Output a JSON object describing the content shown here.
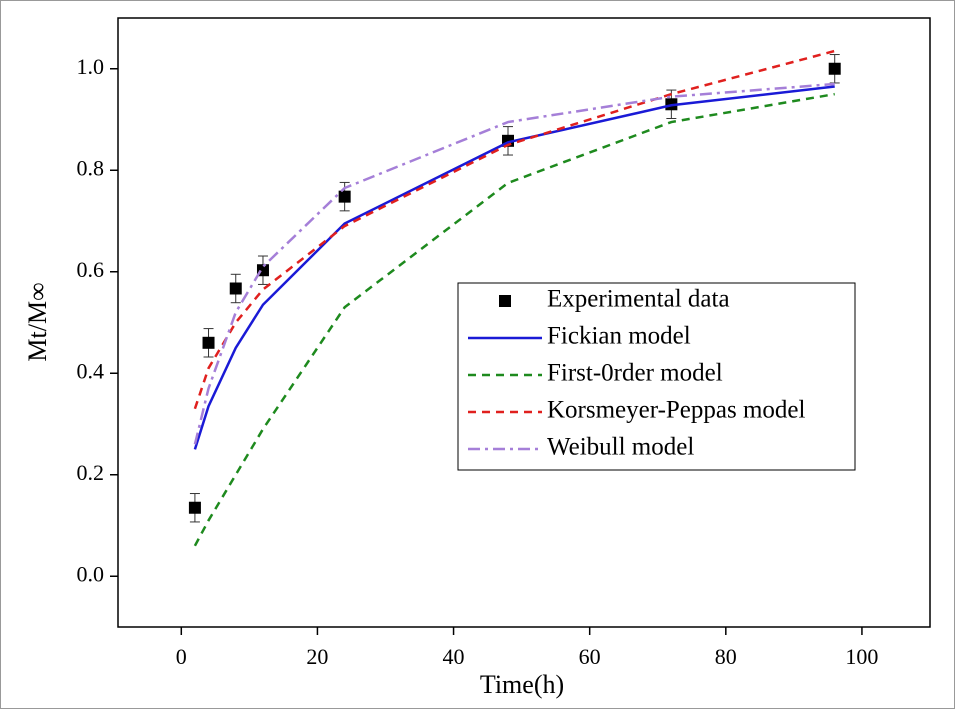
{
  "chart_data": {
    "type": "line",
    "x_label": "Time(h)",
    "y_label": "Mt/M∞",
    "x": [
      2,
      4,
      8,
      12,
      24,
      48,
      72,
      96
    ],
    "xlim": [
      -9.3,
      110
    ],
    "xticks": [
      0,
      20,
      40,
      60,
      80,
      100
    ],
    "ylim": [
      -0.1,
      1.1
    ],
    "yticks": [
      {
        "value": 0,
        "label": "0.0"
      },
      0.2,
      0.4,
      0.6,
      0.8,
      {
        "value": 1,
        "label": "1.0"
      }
    ],
    "series": [
      {
        "name": "Experimental data",
        "color": "#000000",
        "style": "markers",
        "values": [
          0.135,
          0.46,
          0.567,
          0.603,
          0.748,
          0.858,
          0.93,
          1.0
        ],
        "errors": [
          0.028,
          0.028,
          0.028,
          0.028,
          0.028,
          0.028,
          0.028,
          0.028
        ]
      },
      {
        "name": "Fickian model",
        "color": "#1a1ad6",
        "style": "solid",
        "values": [
          0.25,
          0.335,
          0.45,
          0.535,
          0.695,
          0.855,
          0.928,
          0.965
        ]
      },
      {
        "name": "First-0rder model",
        "color": "#1e8a1e",
        "style": "dashed",
        "values": [
          0.06,
          0.11,
          0.2,
          0.29,
          0.53,
          0.775,
          0.895,
          0.95
        ]
      },
      {
        "name": "Korsmeyer-Peppas model",
        "color": "#e0201e",
        "style": "dashed",
        "values": [
          0.33,
          0.41,
          0.5,
          0.565,
          0.69,
          0.85,
          0.95,
          1.035
        ]
      },
      {
        "name": "Weibull model",
        "color": "#a57fd8",
        "style": "dashdot",
        "values": [
          0.26,
          0.37,
          0.52,
          0.61,
          0.765,
          0.895,
          0.945,
          0.97
        ]
      }
    ]
  }
}
